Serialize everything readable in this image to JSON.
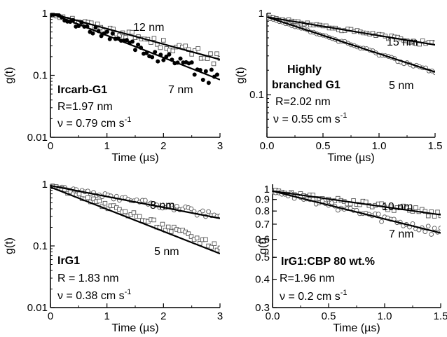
{
  "chart_data": [
    {
      "type": "scatter",
      "scale": "log",
      "xlabel": "Time (µs)",
      "ylabel": "g(t)",
      "xlim": [
        0,
        3
      ],
      "ylim": [
        0.01,
        1
      ],
      "xticks": [
        "0",
        "1",
        "2",
        "3"
      ],
      "yticks": [
        {
          "v": 1,
          "label": "1"
        },
        {
          "v": 0.1,
          "label": "0.1"
        },
        {
          "v": 0.01,
          "label": "0.01"
        }
      ],
      "annotations": {
        "name": "Ircarb-G1",
        "radius": "R=1.97 nm",
        "velocity_prefix": "ν = 0.79 cm s",
        "velocity_exp": "-1",
        "fit_labels": [
          "12 nm",
          "7 nm"
        ]
      },
      "fits": [
        {
          "label": "12 nm",
          "x": [
            0,
            3
          ],
          "y": [
            1.0,
            0.18
          ]
        },
        {
          "label": "7 nm",
          "x": [
            0,
            3
          ],
          "y": [
            1.0,
            0.085
          ]
        }
      ],
      "series": [
        {
          "marker": "open-square",
          "decay": 0.57,
          "noise": 0.16,
          "n": 55,
          "xmax": 3.0
        },
        {
          "marker": "filled-circle",
          "decay": 0.82,
          "noise": 0.22,
          "n": 60,
          "xmax": 2.95
        }
      ]
    },
    {
      "type": "scatter",
      "scale": "log",
      "xlabel": "Time (µs)",
      "ylabel": "g(t)",
      "xlim": [
        0,
        1.5
      ],
      "ylim": [
        0.03,
        1
      ],
      "xticks": [
        "0.0",
        "0.5",
        "1.0",
        "1.5"
      ],
      "yticks": [
        {
          "v": 1,
          "label": "1"
        },
        {
          "v": 0.1,
          "label": "0.1"
        }
      ],
      "annotations": {
        "name_line1": "Highly",
        "name_line2": "branched G1",
        "radius": "R=2.02 nm",
        "velocity_prefix": "ν = 0.55 cm s",
        "velocity_exp": "-1",
        "fit_labels": [
          "15 nm",
          "5 nm"
        ]
      },
      "fits": [
        {
          "label": "15 nm",
          "x": [
            0,
            1.5
          ],
          "y": [
            0.9,
            0.41
          ]
        },
        {
          "label": "5 nm",
          "x": [
            0,
            1.5
          ],
          "y": [
            0.9,
            0.19
          ]
        }
      ],
      "series": [
        {
          "marker": "open-square",
          "decay": 0.52,
          "noise": 0.05,
          "n": 55,
          "xmax": 1.5
        },
        {
          "marker": "open-circle",
          "decay": 1.04,
          "noise": 0.04,
          "n": 55,
          "xmax": 1.5
        }
      ]
    },
    {
      "type": "scatter",
      "scale": "log",
      "xlabel": "Time (µs)",
      "ylabel": "g(t)",
      "xlim": [
        0,
        3
      ],
      "ylim": [
        0.01,
        1
      ],
      "xticks": [
        "0",
        "1",
        "2",
        "3"
      ],
      "yticks": [
        {
          "v": 1,
          "label": "1"
        },
        {
          "v": 0.1,
          "label": "0.1"
        },
        {
          "v": 0.01,
          "label": "0.01"
        }
      ],
      "annotations": {
        "name": "IrG1",
        "radius": "R = 1.83 nm",
        "velocity_prefix": "ν = 0.38 cm s",
        "velocity_exp": "-1",
        "fit_labels": [
          "8 nm",
          "5 nm"
        ]
      },
      "fits": [
        {
          "label": "8 nm",
          "x": [
            0,
            3
          ],
          "y": [
            0.95,
            0.28
          ]
        },
        {
          "label": "5 nm",
          "x": [
            0,
            3
          ],
          "y": [
            0.9,
            0.075
          ]
        }
      ],
      "series": [
        {
          "marker": "open-circle",
          "decay": 0.38,
          "noise": 0.1,
          "n": 60,
          "xmax": 3.0
        },
        {
          "marker": "open-square",
          "decay": 0.75,
          "noise": 0.13,
          "n": 60,
          "xmax": 3.0
        }
      ]
    },
    {
      "type": "scatter",
      "scale": "log",
      "xlabel": "Time (µs)",
      "ylabel": "g(t)",
      "xlim": [
        0,
        1.5
      ],
      "ylim": [
        0.3,
        1.05
      ],
      "xticks": [
        "0.0",
        "0.5",
        "1.0",
        "1.5"
      ],
      "yticks": [
        {
          "v": 1,
          "label": "1"
        },
        {
          "v": 0.9,
          "label": "0.9"
        },
        {
          "v": 0.8,
          "label": "0.8"
        },
        {
          "v": 0.7,
          "label": "0.7"
        },
        {
          "v": 0.6,
          "label": "0.6"
        },
        {
          "v": 0.5,
          "label": "0.5"
        },
        {
          "v": 0.4,
          "label": "0.4"
        },
        {
          "v": 0.3,
          "label": "0.3"
        }
      ],
      "annotations": {
        "name": "IrG1:CBP 80 wt.%",
        "radius": "R=1.96 nm",
        "velocity_prefix": "ν = 0.2 cm s",
        "velocity_exp": "-1",
        "fit_labels": [
          "10 nm",
          "7 nm"
        ]
      },
      "fits": [
        {
          "label": "10 nm",
          "x": [
            0,
            1.5
          ],
          "y": [
            0.98,
            0.77
          ]
        },
        {
          "label": "7 nm",
          "x": [
            0,
            1.5
          ],
          "y": [
            0.98,
            0.64
          ]
        }
      ],
      "series": [
        {
          "marker": "open-square",
          "decay": 0.16,
          "noise": 0.03,
          "n": 55,
          "xmax": 1.5
        },
        {
          "marker": "open-circle",
          "decay": 0.28,
          "noise": 0.04,
          "n": 55,
          "xmax": 1.5
        }
      ]
    }
  ]
}
